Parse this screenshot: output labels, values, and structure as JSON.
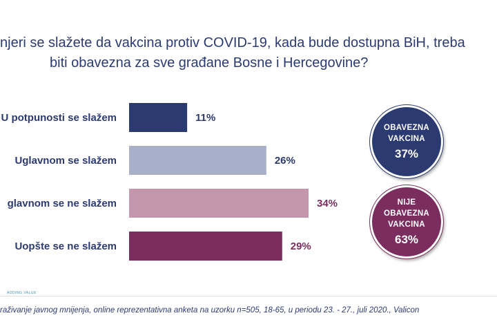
{
  "title": {
    "line1": "njeri se slažete da vakcina protiv COVID-19, kada bude dostupna BiH, treba",
    "line2": "biti obavezna za sve građane Bosne i Hercegovine?"
  },
  "chart_data": {
    "type": "bar",
    "orientation": "horizontal",
    "categories": [
      "U potpunosti se slažem",
      "Uglavnom se slažem",
      "Uglavnom se ne slažem",
      "Uopšte se ne slažem"
    ],
    "category_labels_visible": [
      "U potpunosti se slažem",
      "Uglavnom se slažem",
      "glavnom se ne slažem",
      "Uopšte se ne slažem"
    ],
    "values": [
      11,
      26,
      34,
      29
    ],
    "value_labels": [
      "11%",
      "26%",
      "34%",
      "29%"
    ],
    "bar_colors": [
      "#2c3a72",
      "#a7b0c8",
      "#c497ae",
      "#7b2d5f"
    ],
    "label_colors": [
      "#2c3a72",
      "#2c3a72",
      "#7b2d5f",
      "#7b2d5f"
    ],
    "xlim": [
      0,
      34
    ],
    "grid": false
  },
  "summary": {
    "mandatory": {
      "lines": [
        "OBAVEZNA",
        "VAKCINA"
      ],
      "value": "37%",
      "color": "#2c3a72"
    },
    "not_mandatory": {
      "lines": [
        "NIJE",
        "OBAVEZNA",
        "VAKCINA"
      ],
      "value": "63%",
      "color": "#7b2d5f"
    }
  },
  "footer": {
    "brand": "ADDING VALUE",
    "source": "raživanje javnog mnijenja, online reprezentativna anketa na uzorku n=505, 18-65, u periodu 23. - 27., juli 2020., Valicon"
  }
}
